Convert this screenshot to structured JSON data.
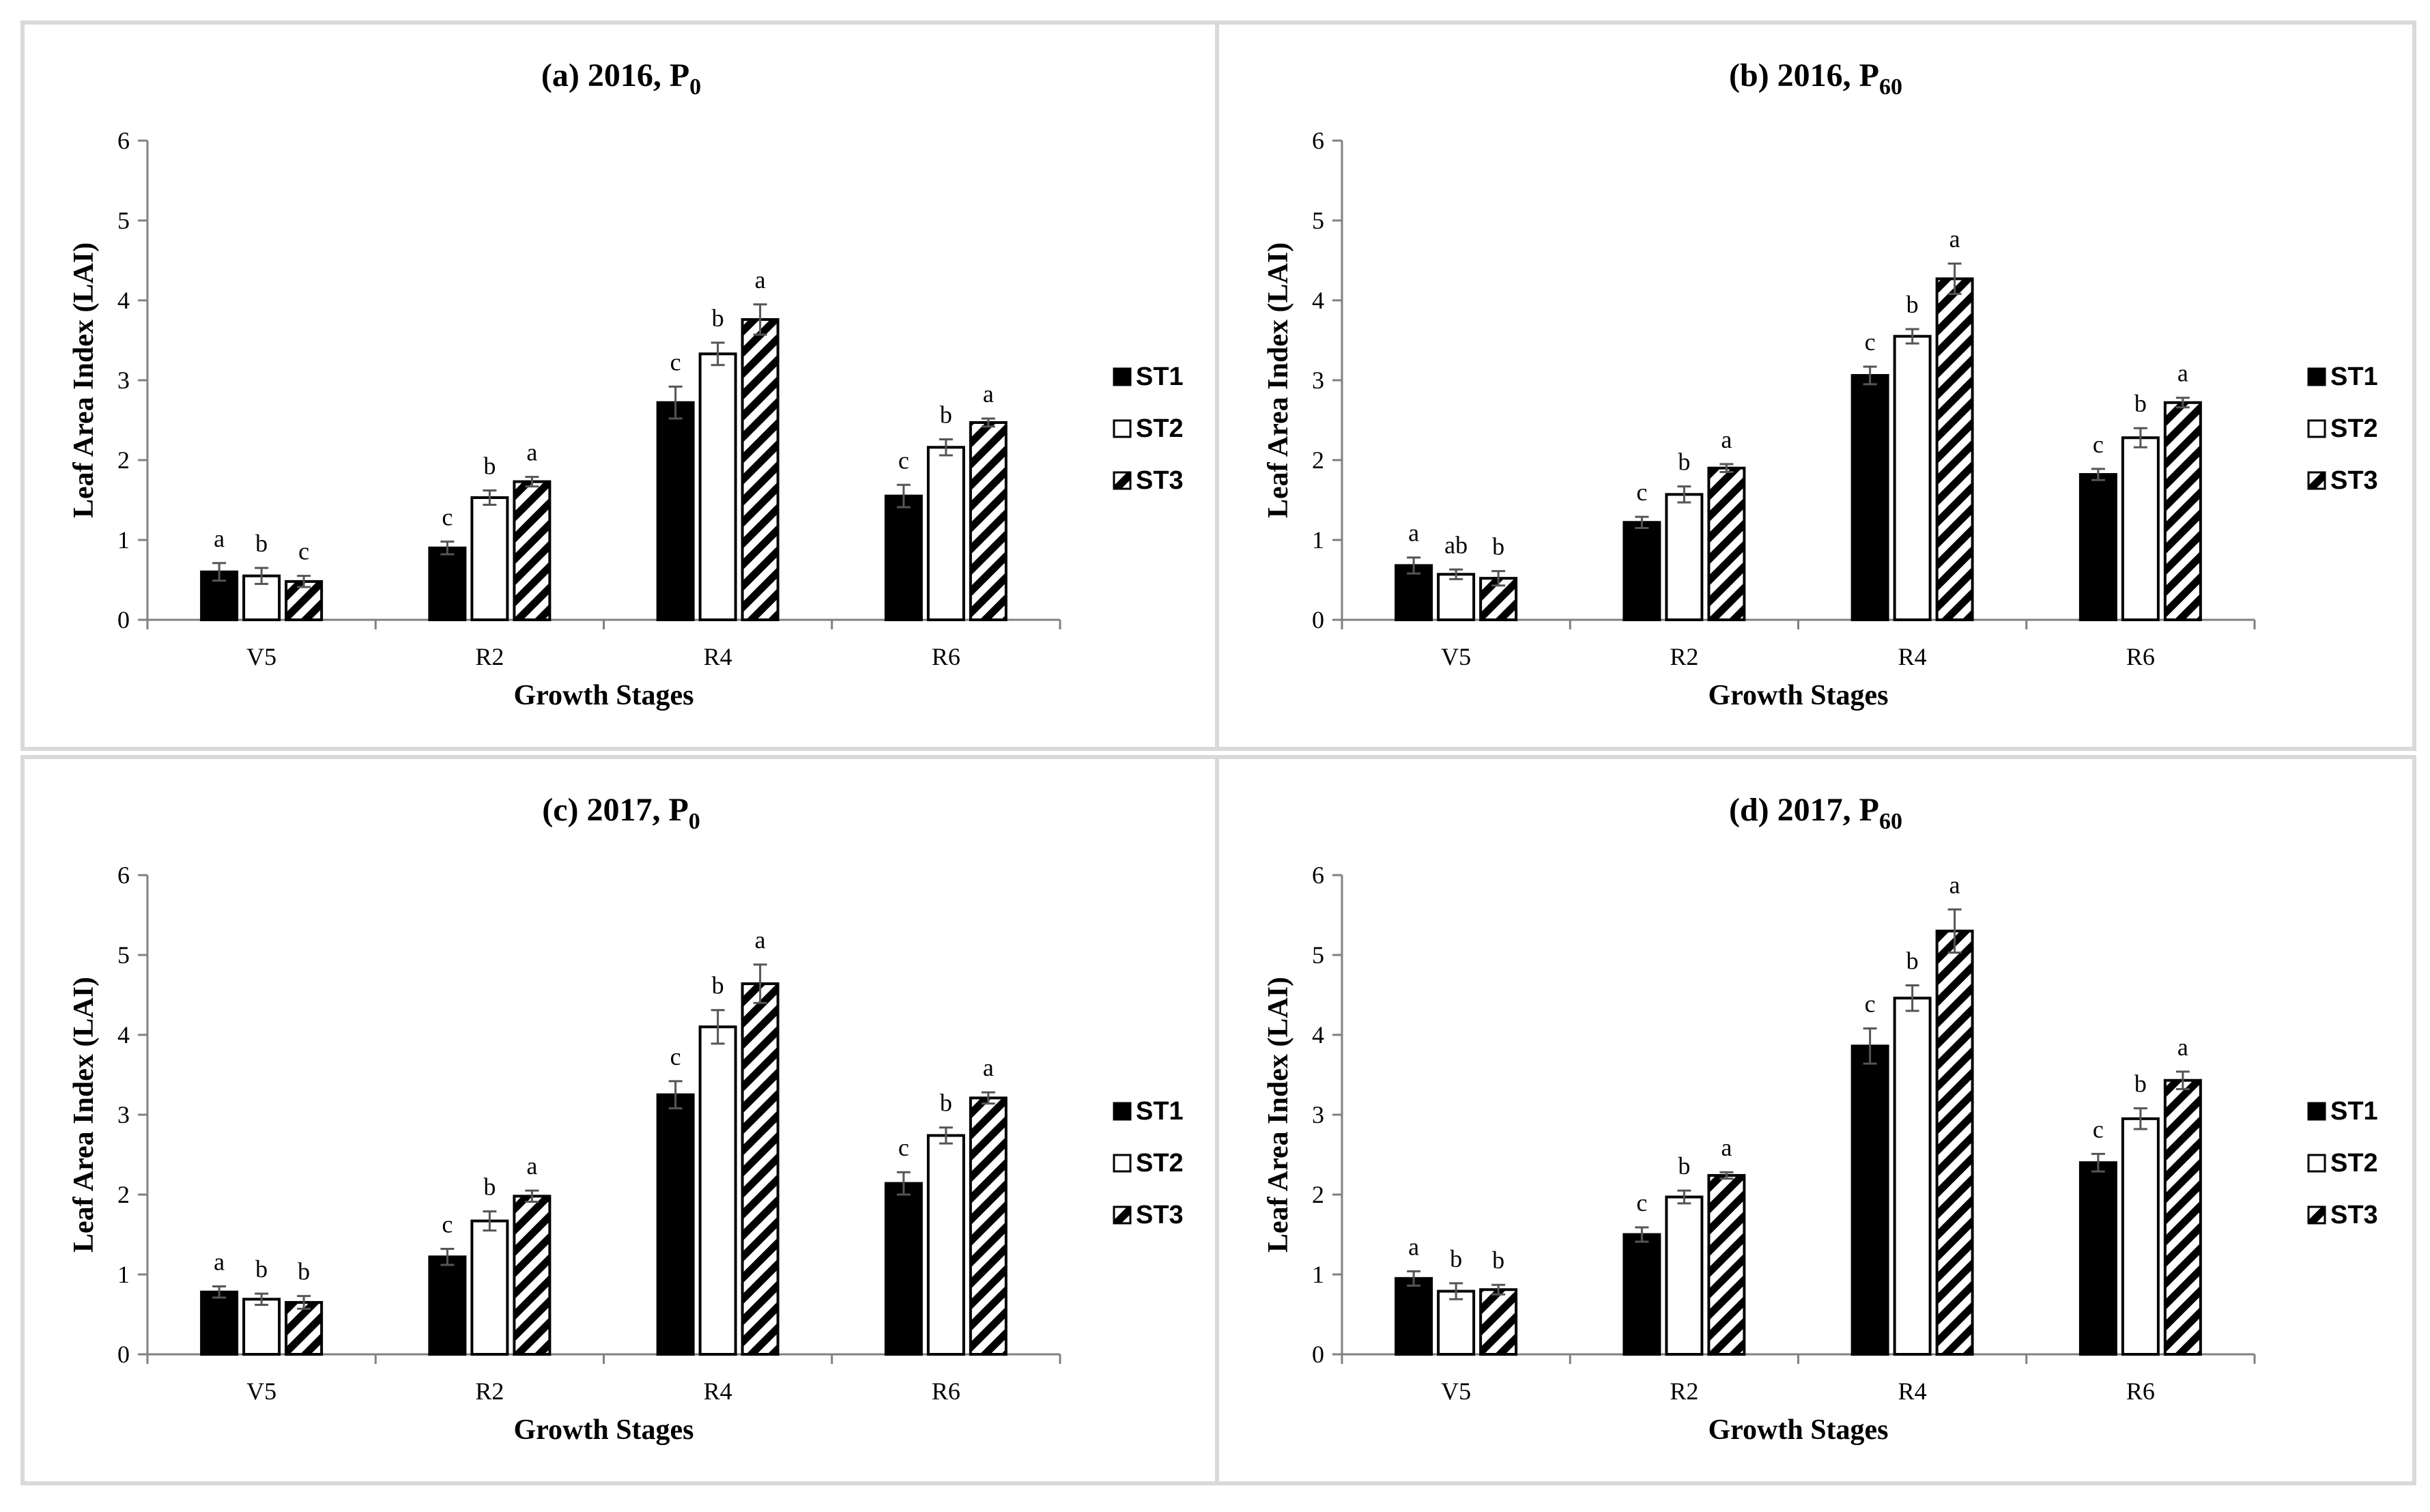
{
  "chart_data": [
    {
      "type": "bar",
      "title": "(a) 2016, P0",
      "title_main": "(a) 2016, P",
      "title_sub": "0",
      "xlabel": "Growth Stages",
      "ylabel": "Leaf Area Index (LAI)",
      "ylim": [
        0,
        6
      ],
      "yticks": [
        "0",
        "1",
        "2",
        "3",
        "4",
        "5",
        "6"
      ],
      "categories": [
        "V5",
        "R2",
        "R4",
        "R6"
      ],
      "series": [
        {
          "name": "ST1",
          "values": [
            0.6,
            0.9,
            2.72,
            1.55
          ],
          "errors": [
            0.11,
            0.08,
            0.2,
            0.14
          ],
          "letters": [
            "a",
            "c",
            "c",
            "c"
          ]
        },
        {
          "name": "ST2",
          "values": [
            0.55,
            1.53,
            3.33,
            2.16
          ],
          "errors": [
            0.1,
            0.09,
            0.14,
            0.1
          ],
          "letters": [
            "b",
            "b",
            "b",
            "b"
          ]
        },
        {
          "name": "ST3",
          "values": [
            0.48,
            1.73,
            3.76,
            2.47
          ],
          "errors": [
            0.07,
            0.06,
            0.19,
            0.05
          ],
          "letters": [
            "c",
            "a",
            "a",
            "a"
          ]
        }
      ]
    },
    {
      "type": "bar",
      "title": "(b) 2016, P60",
      "title_main": "(b) 2016, P",
      "title_sub": "60",
      "xlabel": "Growth Stages",
      "ylabel": "Leaf Area Index (LAI)",
      "ylim": [
        0,
        6
      ],
      "yticks": [
        "0",
        "1",
        "2",
        "3",
        "4",
        "5",
        "6"
      ],
      "categories": [
        "V5",
        "R2",
        "R4",
        "R6"
      ],
      "series": [
        {
          "name": "ST1",
          "values": [
            0.68,
            1.22,
            3.06,
            1.82
          ],
          "errors": [
            0.1,
            0.07,
            0.11,
            0.07
          ],
          "letters": [
            "a",
            "c",
            "c",
            "c"
          ]
        },
        {
          "name": "ST2",
          "values": [
            0.57,
            1.57,
            3.55,
            2.28
          ],
          "errors": [
            0.06,
            0.1,
            0.09,
            0.12
          ],
          "letters": [
            "ab",
            "b",
            "b",
            "b"
          ]
        },
        {
          "name": "ST3",
          "values": [
            0.52,
            1.9,
            4.27,
            2.72
          ],
          "errors": [
            0.09,
            0.05,
            0.19,
            0.06
          ],
          "letters": [
            "b",
            "a",
            "a",
            "a"
          ]
        }
      ]
    },
    {
      "type": "bar",
      "title": "(c) 2017, P0",
      "title_main": "(c) 2017, P",
      "title_sub": "0",
      "xlabel": "Growth Stages",
      "ylabel": "Leaf Area Index (LAI)",
      "ylim": [
        0,
        6
      ],
      "yticks": [
        "0",
        "1",
        "2",
        "3",
        "4",
        "5",
        "6"
      ],
      "categories": [
        "V5",
        "R2",
        "R4",
        "R6"
      ],
      "series": [
        {
          "name": "ST1",
          "values": [
            0.78,
            1.22,
            3.25,
            2.14
          ],
          "errors": [
            0.07,
            0.1,
            0.17,
            0.14
          ],
          "letters": [
            "a",
            "c",
            "c",
            "c"
          ]
        },
        {
          "name": "ST2",
          "values": [
            0.69,
            1.67,
            4.1,
            2.74
          ],
          "errors": [
            0.07,
            0.12,
            0.21,
            0.1
          ],
          "letters": [
            "b",
            "b",
            "b",
            "b"
          ]
        },
        {
          "name": "ST3",
          "values": [
            0.65,
            1.98,
            4.64,
            3.21
          ],
          "errors": [
            0.08,
            0.07,
            0.24,
            0.07
          ],
          "letters": [
            "b",
            "a",
            "a",
            "a"
          ]
        }
      ]
    },
    {
      "type": "bar",
      "title": "(d) 2017, P60",
      "title_main": "(d) 2017, P",
      "title_sub": "60",
      "xlabel": "Growth Stages",
      "ylabel": "Leaf Area Index (LAI)",
      "ylim": [
        0,
        6
      ],
      "yticks": [
        "0",
        "1",
        "2",
        "3",
        "4",
        "5",
        "6"
      ],
      "categories": [
        "V5",
        "R2",
        "R4",
        "R6"
      ],
      "series": [
        {
          "name": "ST1",
          "values": [
            0.95,
            1.5,
            3.86,
            2.4
          ],
          "errors": [
            0.09,
            0.09,
            0.22,
            0.11
          ],
          "letters": [
            "a",
            "c",
            "c",
            "c"
          ]
        },
        {
          "name": "ST2",
          "values": [
            0.79,
            1.97,
            4.46,
            2.95
          ],
          "errors": [
            0.1,
            0.08,
            0.16,
            0.13
          ],
          "letters": [
            "b",
            "b",
            "b",
            "b"
          ]
        },
        {
          "name": "ST3",
          "values": [
            0.81,
            2.24,
            5.3,
            3.43
          ],
          "errors": [
            0.06,
            0.04,
            0.27,
            0.11
          ],
          "letters": [
            "b",
            "a",
            "a",
            "a"
          ]
        }
      ]
    }
  ]
}
